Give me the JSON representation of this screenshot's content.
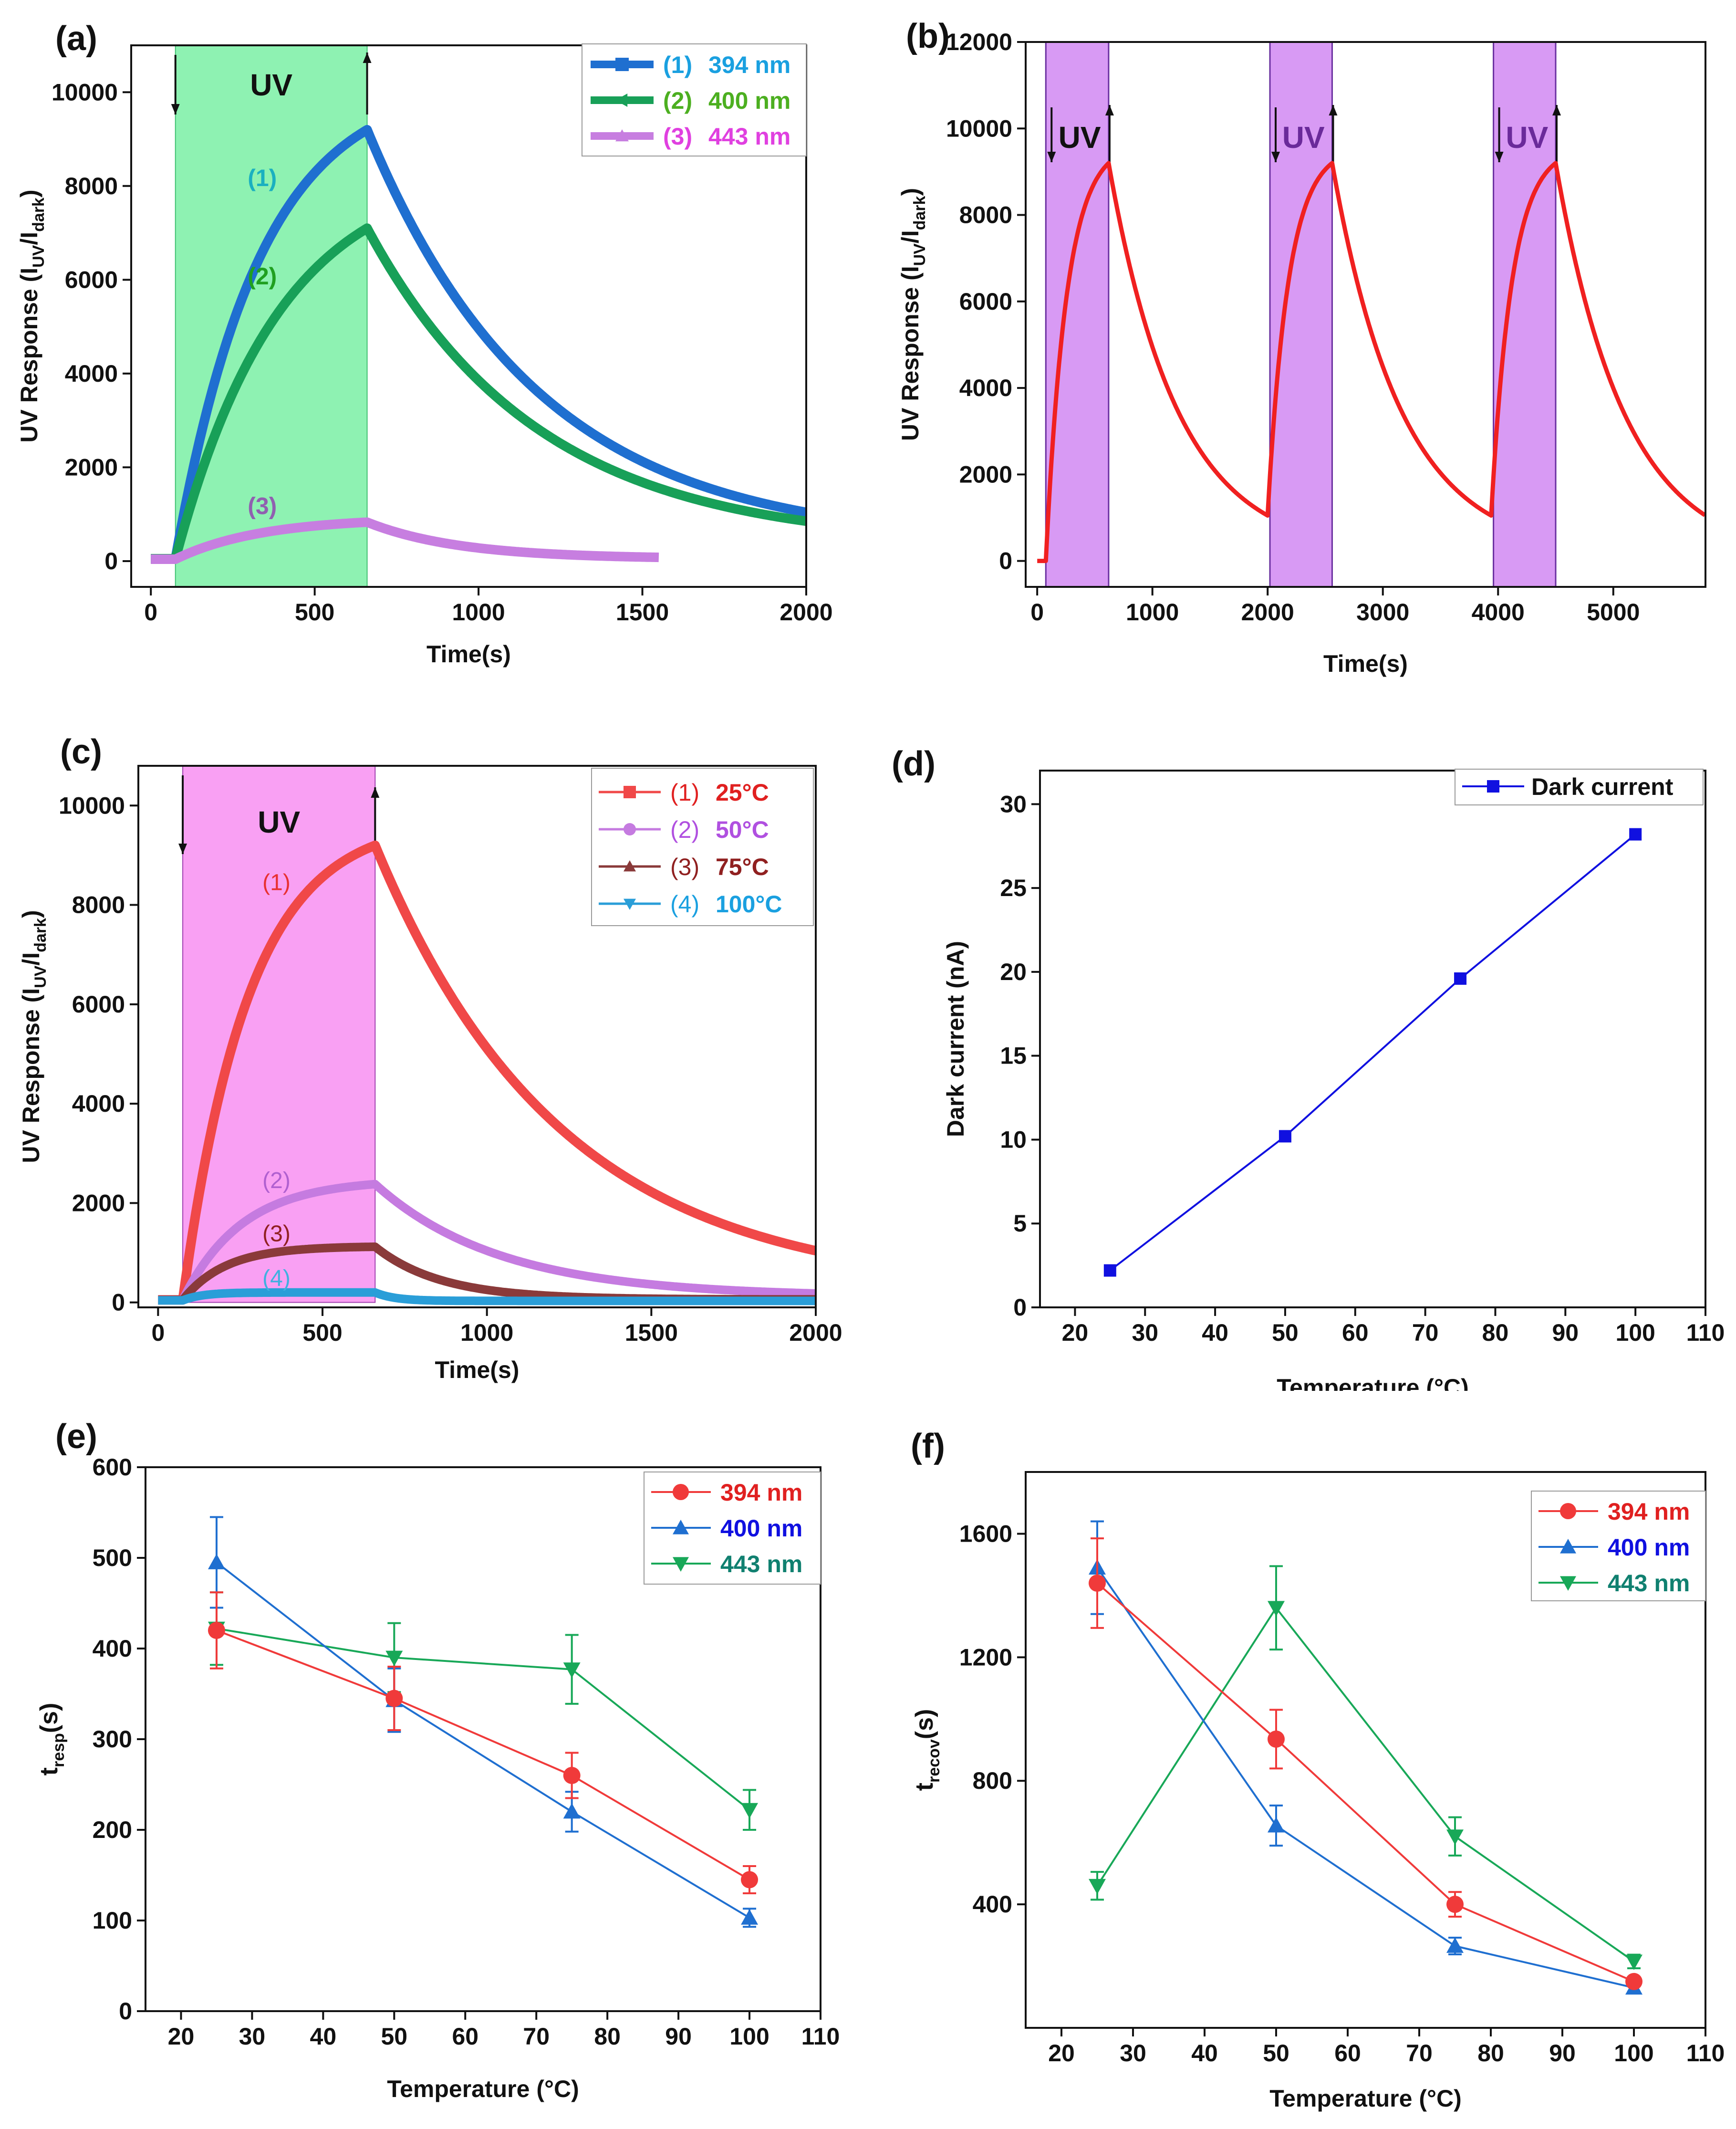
{
  "panels": [
    {
      "id": "a",
      "panel_label": "(a)",
      "xlabel": "Time(s)",
      "ylabel_parts": [
        "UV Response (I",
        "UV",
        "/I",
        "dark",
        ")"
      ],
      "xticks": [
        "0",
        "500",
        "1000",
        "1500",
        "2000"
      ],
      "yticks": [
        "0",
        "2000",
        "4000",
        "6000",
        "8000",
        "10000"
      ],
      "band_label": "UV",
      "legend": [
        {
          "num": "(1)",
          "label": "394 nm",
          "label_color": "#1aa0e0",
          "line_color": "#1f6fd0",
          "marker": "square"
        },
        {
          "num": "(2)",
          "label": "400 nm",
          "label_color": "#4caf20",
          "line_color": "#18a058",
          "marker": "triangle-left"
        },
        {
          "num": "(3)",
          "label": "443 nm",
          "label_color": "#e040e0",
          "line_color": "#c77ee0",
          "marker": "triangle-up"
        }
      ],
      "curve_labels": [
        {
          "text": "(1)",
          "color": "#1ab0c0"
        },
        {
          "text": "(2)",
          "color": "#20a020"
        },
        {
          "text": "(3)",
          "color": "#9060b0"
        }
      ]
    },
    {
      "id": "b",
      "panel_label": "(b)",
      "xlabel": "Time(s)",
      "ylabel_parts": [
        "UV Response (I",
        "UV",
        "/I",
        "dark",
        ")"
      ],
      "xticks": [
        "0",
        "1000",
        "2000",
        "3000",
        "4000",
        "5000"
      ],
      "yticks": [
        "0",
        "2000",
        "4000",
        "6000",
        "8000",
        "10000",
        "12000"
      ],
      "band_labels": [
        "UV",
        "UV",
        "UV"
      ]
    },
    {
      "id": "c",
      "panel_label": "(c)",
      "xlabel": "Time(s)",
      "ylabel_parts": [
        "UV Response (I",
        "UV",
        "/I",
        "dark",
        ")"
      ],
      "xticks": [
        "0",
        "500",
        "1000",
        "1500",
        "2000"
      ],
      "yticks": [
        "0",
        "2000",
        "4000",
        "6000",
        "8000",
        "10000"
      ],
      "band_label": "UV",
      "legend": [
        {
          "num": "(1)",
          "label": "25°C",
          "label_color": "#e02020",
          "line_color": "#f04848",
          "marker": "square"
        },
        {
          "num": "(2)",
          "label": "50°C",
          "label_color": "#b050e0",
          "line_color": "#c57be0",
          "marker": "circle"
        },
        {
          "num": "(3)",
          "label": "75°C",
          "label_color": "#902020",
          "line_color": "#8a3a3a",
          "marker": "triangle-up"
        },
        {
          "num": "(4)",
          "label": "100°C",
          "label_color": "#1aa0e0",
          "line_color": "#2a9ed8",
          "marker": "triangle-down"
        }
      ],
      "curve_labels": [
        {
          "text": "(1)",
          "color": "#e83030"
        },
        {
          "text": "(2)",
          "color": "#b060d0"
        },
        {
          "text": "(3)",
          "color": "#902020"
        },
        {
          "text": "(4)",
          "color": "#40b0e0"
        }
      ]
    },
    {
      "id": "d",
      "panel_label": "(d)",
      "xlabel": "Temperature (°C)",
      "ylabel": "Dark current (nA)",
      "xticks": [
        "20",
        "30",
        "40",
        "50",
        "60",
        "70",
        "80",
        "90",
        "100",
        "110"
      ],
      "yticks": [
        "0",
        "5",
        "10",
        "15",
        "20",
        "25",
        "30"
      ],
      "legend": [
        {
          "label": "Dark current",
          "color": "#1010e0",
          "marker": "square"
        }
      ]
    },
    {
      "id": "e",
      "panel_label": "(e)",
      "xlabel": "Temperature (°C)",
      "ylabel_parts": [
        "t",
        "resp",
        "(s)"
      ],
      "xticks": [
        "20",
        "30",
        "40",
        "50",
        "60",
        "70",
        "80",
        "90",
        "100",
        "110"
      ],
      "yticks": [
        "0",
        "100",
        "200",
        "300",
        "400",
        "500",
        "600"
      ],
      "legend": [
        {
          "label": "394 nm",
          "color": "#f03a3a",
          "text_color": "#e02020",
          "marker": "circle"
        },
        {
          "label": "400 nm",
          "color": "#1f6fd0",
          "text_color": "#1010e0",
          "marker": "triangle-up"
        },
        {
          "label": "443 nm",
          "color": "#18a858",
          "text_color": "#108070",
          "marker": "triangle-down"
        }
      ]
    },
    {
      "id": "f",
      "panel_label": "(f)",
      "xlabel": "Temperature (°C)",
      "ylabel_parts": [
        "t",
        "recov",
        "(s)"
      ],
      "xticks": [
        "20",
        "30",
        "40",
        "50",
        "60",
        "70",
        "80",
        "90",
        "100",
        "110"
      ],
      "yticks": [
        "400",
        "800",
        "1200",
        "1600"
      ],
      "legend": [
        {
          "label": "394 nm",
          "color": "#f03a3a",
          "text_color": "#e02020",
          "marker": "circle"
        },
        {
          "label": "400 nm",
          "color": "#1f6fd0",
          "text_color": "#1010e0",
          "marker": "triangle-up"
        },
        {
          "label": "443 nm",
          "color": "#18a858",
          "text_color": "#108070",
          "marker": "triangle-down"
        }
      ]
    }
  ],
  "chart_data": [
    {
      "panel": "a",
      "type": "line",
      "title": "",
      "xlabel": "Time(s)",
      "ylabel": "UV Response (IUV/Idark)",
      "xlim": [
        -60,
        2000
      ],
      "ylim": [
        -550,
        11000
      ],
      "uv_on": [
        [
          75,
          660
        ]
      ],
      "series": [
        {
          "name": "(1) 394 nm",
          "color": "#1f6fd0",
          "baseline": 50,
          "peak": 9200,
          "tau_rise": 260,
          "decay_to": 1040,
          "tau_decay": 520,
          "t_on": 75,
          "t_off": 660,
          "t_end": 2000
        },
        {
          "name": "(2) 400 nm",
          "color": "#18a058",
          "baseline": 50,
          "peak": 7100,
          "tau_rise": 320,
          "decay_to": 850,
          "tau_decay": 520,
          "t_on": 75,
          "t_off": 660,
          "t_end": 2000
        },
        {
          "name": "(3) 443 nm",
          "color": "#c77ee0",
          "baseline": 40,
          "peak": 830,
          "tau_rise": 260,
          "decay_to": 80,
          "tau_decay": 280,
          "t_on": 75,
          "t_off": 660,
          "t_end": 1550
        }
      ]
    },
    {
      "panel": "b",
      "type": "line",
      "xlabel": "Time(s)",
      "ylabel": "UV Response (IUV/Idark)",
      "xlim": [
        -100,
        5800
      ],
      "ylim": [
        -600,
        12000
      ],
      "uv_on": [
        [
          75,
          620
        ],
        [
          2020,
          2560
        ],
        [
          3960,
          4500
        ]
      ],
      "series": [
        {
          "name": "cycling",
          "color": "#f02020",
          "cycles": [
            {
              "t_on": 75,
              "t_off": 620,
              "start": 0,
              "peak": 9200
            },
            {
              "t_on": 2000,
              "t_off": 2560,
              "start": 1050,
              "peak": 9200
            },
            {
              "t_on": 3940,
              "t_off": 4500,
              "start": 1050,
              "peak": 9200
            }
          ],
          "tau_rise": 180,
          "tau_decay": 600,
          "t_end": 5800
        }
      ]
    },
    {
      "panel": "c",
      "type": "line",
      "xlabel": "Time(s)",
      "ylabel": "UV Response (IUV/Idark)",
      "xlim": [
        -60,
        2000
      ],
      "ylim": [
        -100,
        10800
      ],
      "uv_on": [
        [
          75,
          660
        ]
      ],
      "series": [
        {
          "name": "(1) 25°C",
          "color": "#f04848",
          "baseline": 50,
          "peak": 9200,
          "tau_rise": 200,
          "decay_to": 1040,
          "tau_decay": 560,
          "t_on": 75,
          "t_off": 660,
          "t_end": 2000
        },
        {
          "name": "(2) 50°C",
          "color": "#c57be0",
          "baseline": 50,
          "peak": 2380,
          "tau_rise": 180,
          "decay_to": 180,
          "tau_decay": 380,
          "t_on": 75,
          "t_off": 660,
          "t_end": 2000
        },
        {
          "name": "(3) 75°C",
          "color": "#8a3a3a",
          "baseline": 50,
          "peak": 1120,
          "tau_rise": 130,
          "decay_to": 60,
          "tau_decay": 200,
          "t_on": 75,
          "t_off": 660,
          "t_end": 2000
        },
        {
          "name": "(4) 100°C",
          "color": "#2a9ed8",
          "baseline": 40,
          "peak": 200,
          "tau_rise": 60,
          "decay_to": 30,
          "tau_decay": 60,
          "t_on": 75,
          "t_off": 660,
          "t_end": 2000
        }
      ]
    },
    {
      "panel": "d",
      "type": "line",
      "xlabel": "Temperature (°C)",
      "ylabel": "Dark current (nA)",
      "xlim": [
        15,
        110
      ],
      "ylim": [
        0,
        32
      ],
      "series": [
        {
          "name": "Dark current",
          "x": [
            25,
            50,
            75,
            100
          ],
          "y": [
            2.2,
            10.2,
            19.6,
            28.2
          ]
        }
      ]
    },
    {
      "panel": "e",
      "type": "line",
      "xlabel": "Temperature (°C)",
      "ylabel": "tresp(s)",
      "xlim": [
        15,
        110
      ],
      "ylim": [
        0,
        600
      ],
      "series": [
        {
          "name": "394 nm",
          "x": [
            25,
            50,
            75,
            100
          ],
          "y": [
            420,
            345,
            260,
            145
          ],
          "err": [
            42,
            35,
            25,
            15
          ]
        },
        {
          "name": "400 nm",
          "x": [
            25,
            50,
            75,
            100
          ],
          "y": [
            495,
            343,
            220,
            103
          ],
          "err": [
            50,
            35,
            22,
            10
          ]
        },
        {
          "name": "443 nm",
          "x": [
            25,
            50,
            75,
            100
          ],
          "y": [
            422,
            390,
            377,
            222
          ],
          "err": [
            40,
            38,
            38,
            22
          ]
        }
      ]
    },
    {
      "panel": "f",
      "type": "line",
      "xlabel": "Temperature (°C)",
      "ylabel": "trecov(s)",
      "xlim": [
        15,
        110
      ],
      "ylim": [
        0,
        1800
      ],
      "series": [
        {
          "name": "394 nm",
          "x": [
            25,
            50,
            75,
            100
          ],
          "y": [
            1440,
            935,
            400,
            150
          ],
          "err": [
            145,
            95,
            40,
            15
          ]
        },
        {
          "name": "400 nm",
          "x": [
            25,
            50,
            75,
            100
          ],
          "y": [
            1490,
            655,
            265,
            130
          ],
          "err": [
            150,
            65,
            27,
            13
          ]
        },
        {
          "name": "443 nm",
          "x": [
            25,
            50,
            75,
            100
          ],
          "y": [
            460,
            1360,
            620,
            215
          ],
          "err": [
            45,
            135,
            62,
            22
          ]
        }
      ]
    }
  ]
}
